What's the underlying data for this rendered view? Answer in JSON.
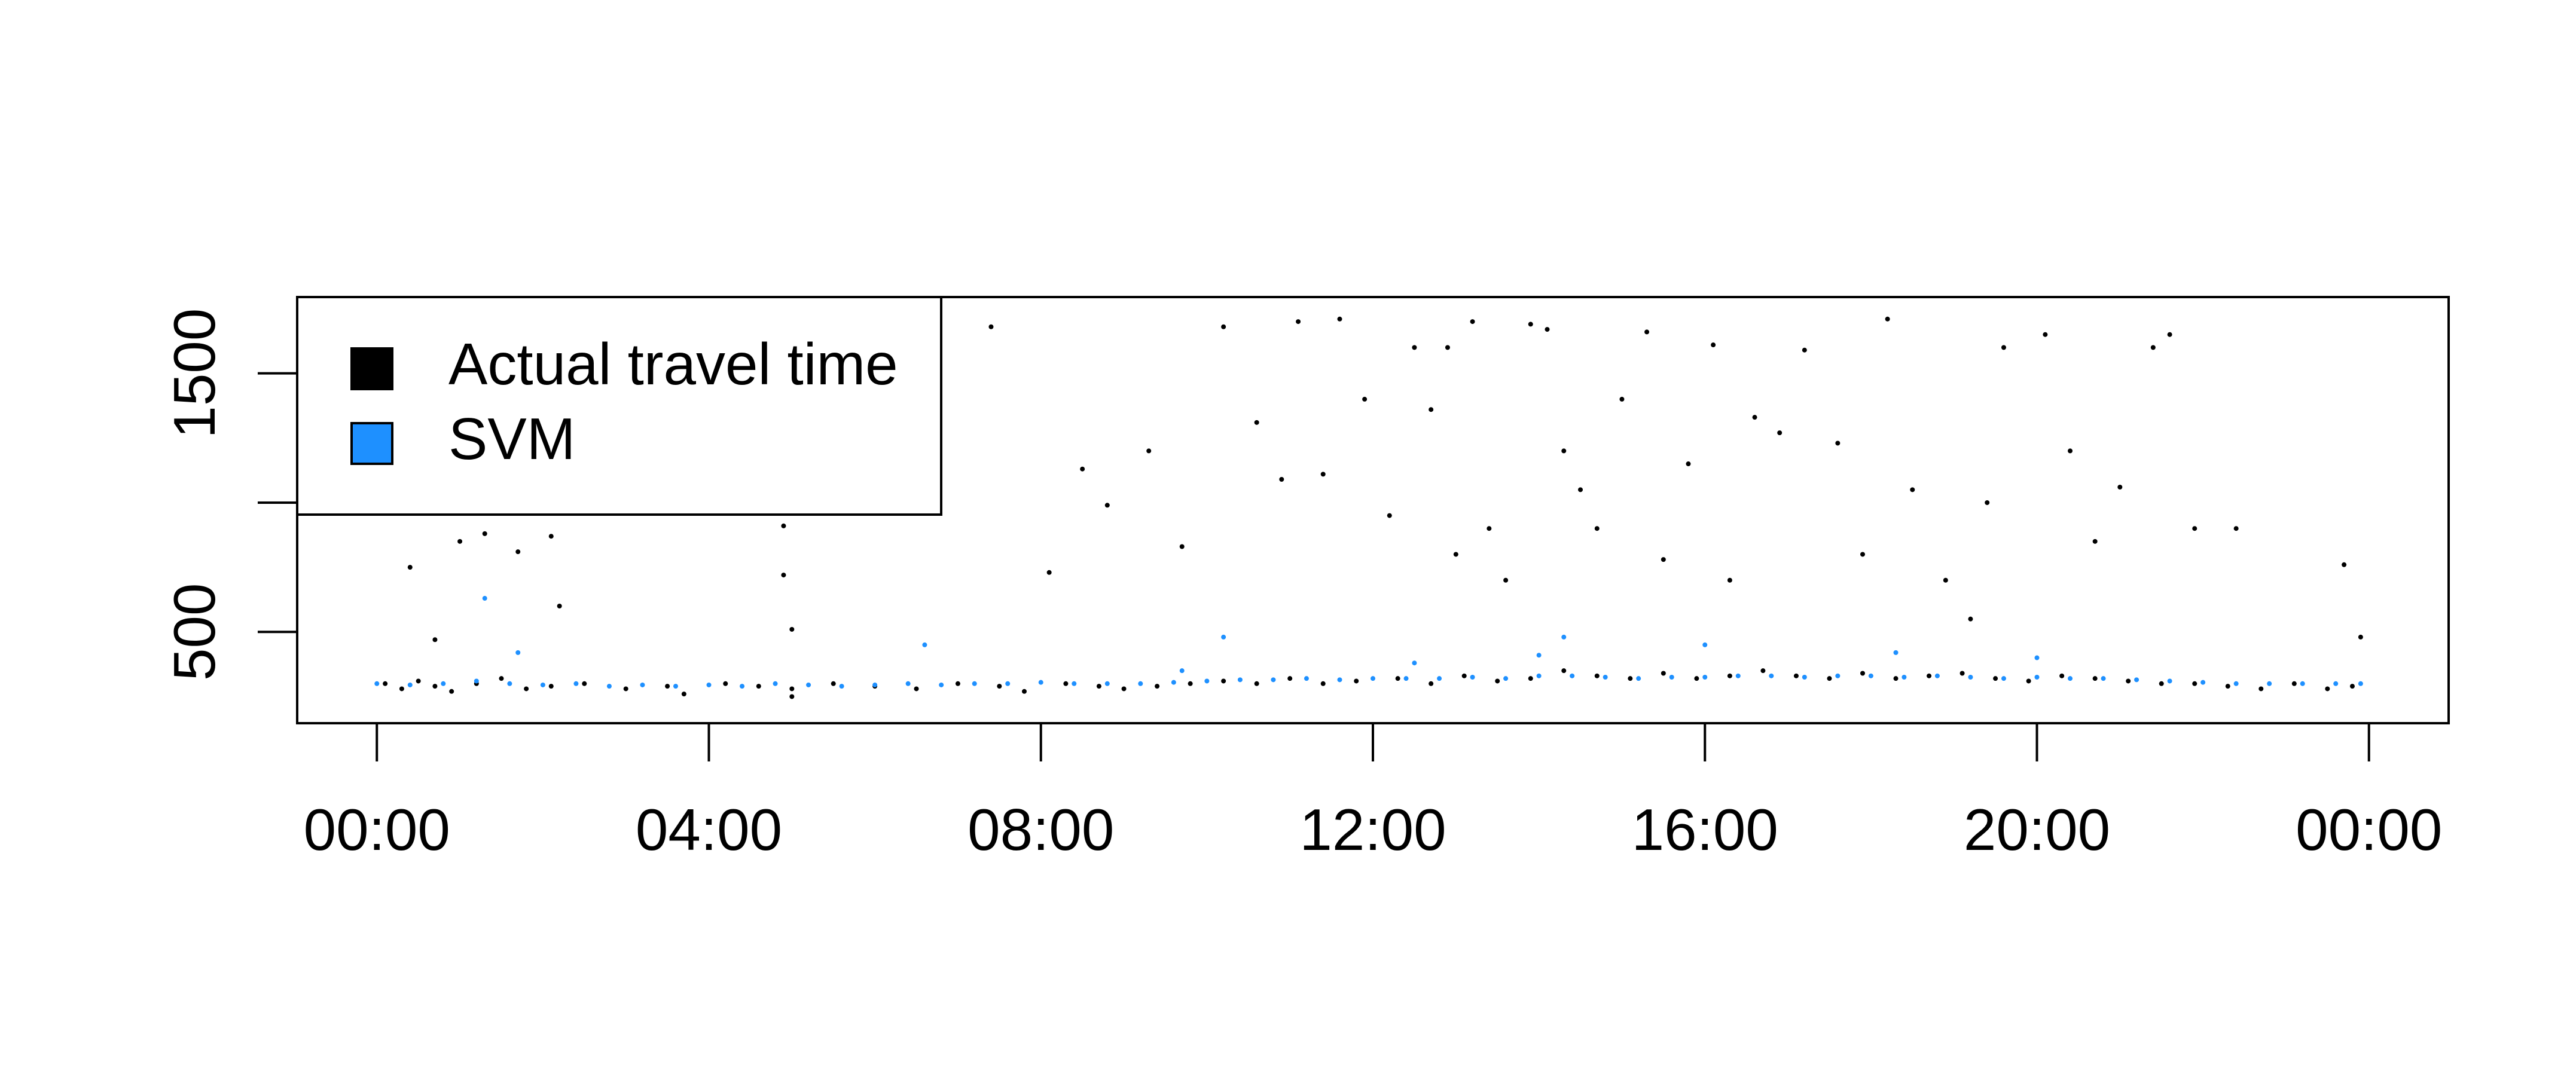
{
  "chart_data": {
    "type": "scatter",
    "xlim": [
      -0.96,
      24.96
    ],
    "ylim": [
      147,
      1795
    ],
    "xticks": [
      {
        "value": 0,
        "label": "00:00"
      },
      {
        "value": 4,
        "label": "04:00"
      },
      {
        "value": 8,
        "label": "08:00"
      },
      {
        "value": 12,
        "label": "12:00"
      },
      {
        "value": 16,
        "label": "16:00"
      },
      {
        "value": 20,
        "label": "20:00"
      },
      {
        "value": 24,
        "label": "00:00"
      }
    ],
    "yticks": [
      500,
      {
        "value": 1000,
        "label": null
      },
      1500
    ],
    "legend": "topleft",
    "series": [
      {
        "name": "Actual travel time",
        "color": "#000000",
        "x": [
          0.1,
          0.3,
          0.5,
          0.7,
          0.9,
          1.2,
          1.5,
          1.8,
          2.1,
          2.5,
          3.0,
          3.5,
          3.7,
          4.2,
          4.6,
          5.0,
          5.0,
          5.5,
          6.0,
          6.5,
          7.0,
          7.5,
          7.8,
          8.3,
          8.7,
          9.0,
          9.4,
          9.8,
          10.2,
          10.6,
          11.0,
          11.4,
          11.8,
          12.3,
          12.7,
          13.1,
          13.5,
          13.9,
          14.3,
          14.7,
          15.1,
          15.5,
          15.9,
          16.3,
          16.7,
          17.1,
          17.5,
          17.9,
          18.3,
          18.7,
          19.1,
          19.5,
          19.9,
          20.3,
          20.7,
          21.1,
          21.5,
          21.9,
          22.3,
          22.7,
          23.1,
          23.5,
          23.8,
          0.4,
          0.7,
          1.0,
          1.3,
          1.7,
          2.1,
          2.2,
          4.9,
          4.9,
          5.0,
          7.4,
          8.1,
          8.5,
          8.8,
          9.3,
          9.7,
          10.2,
          10.6,
          10.9,
          11.1,
          11.4,
          11.6,
          11.9,
          12.2,
          12.5,
          12.7,
          12.9,
          13.0,
          13.2,
          13.4,
          13.6,
          13.9,
          14.1,
          14.3,
          14.5,
          14.7,
          15.0,
          15.3,
          15.5,
          15.8,
          16.1,
          16.3,
          16.6,
          16.9,
          17.2,
          17.6,
          17.9,
          18.2,
          18.5,
          18.9,
          19.2,
          19.4,
          19.6,
          20.1,
          20.4,
          20.7,
          21.0,
          21.4,
          21.6,
          21.9,
          22.4,
          23.7,
          23.9
        ],
        "values": [
          300,
          280,
          310,
          290,
          270,
          300,
          320,
          280,
          290,
          300,
          280,
          290,
          260,
          300,
          290,
          280,
          250,
          300,
          290,
          280,
          300,
          290,
          270,
          300,
          290,
          280,
          290,
          300,
          310,
          300,
          320,
          300,
          310,
          320,
          300,
          330,
          310,
          320,
          350,
          330,
          320,
          340,
          320,
          330,
          350,
          330,
          320,
          340,
          320,
          330,
          340,
          320,
          310,
          330,
          320,
          310,
          300,
          300,
          290,
          280,
          300,
          280,
          290,
          750,
          470,
          850,
          880,
          810,
          870,
          600,
          910,
          720,
          510,
          1680,
          730,
          1130,
          990,
          1200,
          830,
          1680,
          1310,
          1090,
          1700,
          1110,
          1710,
          1400,
          950,
          1600,
          1360,
          1600,
          800,
          1700,
          900,
          700,
          1690,
          1670,
          1200,
          1050,
          900,
          1400,
          1660,
          780,
          1150,
          1610,
          700,
          1330,
          1270,
          1590,
          1230,
          800,
          1710,
          1050,
          700,
          550,
          1000,
          1600,
          1650,
          1200,
          850,
          1060,
          1600,
          1650,
          900,
          900,
          760,
          480
        ]
      },
      {
        "name": "SVM",
        "color": "#1e90ff",
        "x": [
          0.0,
          0.4,
          0.8,
          1.2,
          1.6,
          2.0,
          2.4,
          2.8,
          3.2,
          3.6,
          4.0,
          4.4,
          4.8,
          5.2,
          5.6,
          6.0,
          6.4,
          6.8,
          7.2,
          7.6,
          8.0,
          8.4,
          8.8,
          9.2,
          9.6,
          10.0,
          10.4,
          10.8,
          11.2,
          11.6,
          12.0,
          12.4,
          12.8,
          13.2,
          13.6,
          14.0,
          14.4,
          14.8,
          15.2,
          15.6,
          16.0,
          16.4,
          16.8,
          17.2,
          17.6,
          18.0,
          18.4,
          18.8,
          19.2,
          19.6,
          20.0,
          20.4,
          20.8,
          21.2,
          21.6,
          22.0,
          22.4,
          22.8,
          23.2,
          23.6,
          23.9,
          1.3,
          1.7,
          6.6,
          9.7,
          10.2,
          12.5,
          14.0,
          14.3,
          16.0,
          18.3,
          20.0
        ],
        "values": [
          300,
          295,
          300,
          310,
          300,
          295,
          300,
          290,
          295,
          290,
          295,
          290,
          300,
          295,
          290,
          295,
          300,
          295,
          300,
          300,
          305,
          300,
          300,
          300,
          305,
          310,
          315,
          315,
          320,
          315,
          320,
          320,
          320,
          325,
          320,
          330,
          330,
          325,
          320,
          325,
          325,
          330,
          330,
          325,
          330,
          330,
          325,
          330,
          325,
          320,
          325,
          320,
          320,
          315,
          310,
          305,
          300,
          300,
          300,
          300,
          300,
          630,
          420,
          450,
          350,
          480,
          380,
          410,
          480,
          450,
          420,
          400
        ]
      }
    ]
  }
}
